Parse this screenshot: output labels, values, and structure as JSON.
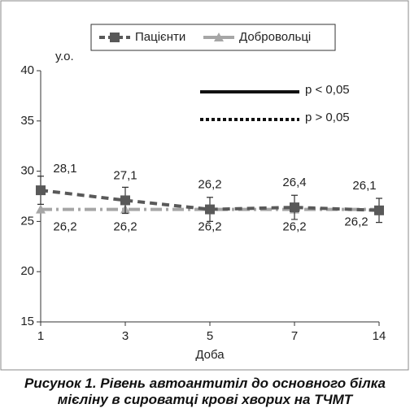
{
  "chart_data": {
    "type": "line",
    "legend": "top",
    "categories": [
      "1",
      "3",
      "5",
      "7",
      "14"
    ],
    "x_label": "Доба",
    "y_label": "у.о.",
    "ylim": [
      15,
      40
    ],
    "yticks": [
      15,
      20,
      25,
      30,
      35,
      40
    ],
    "series": [
      {
        "name": "Пацієнти",
        "color": "#595959",
        "values": [
          28.1,
          27.1,
          26.2,
          26.4,
          26.1
        ],
        "value_labels": [
          "28,1",
          "27,1",
          "26,2",
          "26,4",
          "26,1"
        ],
        "errors": [
          1.4,
          1.3,
          1.2,
          1.2,
          1.2
        ]
      },
      {
        "name": "Добровольці",
        "color": "#a6a6a6",
        "values": [
          26.2,
          26.2,
          26.2,
          26.2,
          26.2
        ],
        "value_labels": [
          "26,2",
          "26,2",
          "26,2",
          "26,2",
          "26,2"
        ]
      }
    ],
    "annotations": [
      "p < 0,05",
      "p > 0,05"
    ],
    "caption": "Рисунок 1.  Рівень автоантитіл до основного білка мієліну в сироватці крові хворих на ТЧМТ"
  }
}
